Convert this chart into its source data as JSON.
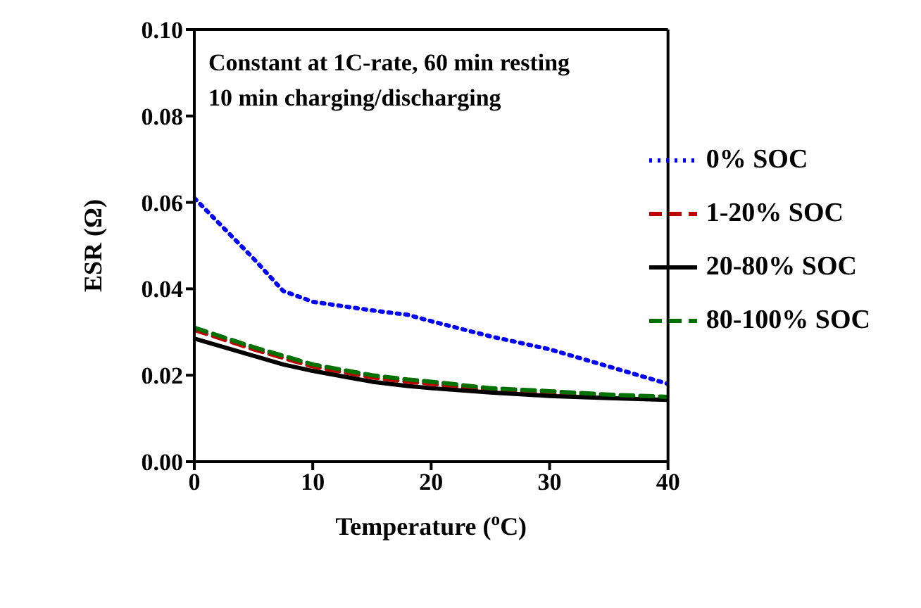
{
  "chart_data": {
    "type": "line",
    "xlabel": "Temperature ($^{o}$C)",
    "ylabel": "ESR (Ω)",
    "annotations": [
      "Constant at 1C-rate, 60 min resting",
      "10 min charging/discharging"
    ],
    "x": [
      0,
      5,
      7.5,
      10,
      15,
      18,
      20,
      25,
      30,
      35,
      40
    ],
    "series": [
      {
        "name": "0% SOC",
        "color": "#0000ff",
        "line_style": "dotted",
        "values": [
          0.061,
          0.047,
          0.0395,
          0.037,
          0.035,
          0.034,
          0.0325,
          0.029,
          0.026,
          0.022,
          0.018
        ]
      },
      {
        "name": "1-20% SOC",
        "color": "#c00000",
        "line_style": "dashed",
        "values": [
          0.0305,
          0.026,
          0.024,
          0.022,
          0.0195,
          0.0185,
          0.018,
          0.0165,
          0.0157,
          0.015,
          0.0145
        ]
      },
      {
        "name": "20-80% SOC",
        "color": "#000000",
        "line_style": "solid",
        "values": [
          0.0285,
          0.0245,
          0.0225,
          0.021,
          0.0185,
          0.0175,
          0.017,
          0.016,
          0.0152,
          0.0147,
          0.0143
        ]
      },
      {
        "name": "80-100% SOC",
        "color": "#007000",
        "line_style": "dashed",
        "values": [
          0.031,
          0.0265,
          0.0245,
          0.0225,
          0.02,
          0.019,
          0.0185,
          0.017,
          0.0163,
          0.0155,
          0.015
        ]
      }
    ],
    "xlim": [
      0,
      40
    ],
    "xticks": [
      0,
      10,
      20,
      30,
      40
    ],
    "ylim": [
      0,
      0.1
    ],
    "yticks": [
      {
        "value": 0,
        "label": "0.00"
      },
      {
        "value": 0.02,
        "label": "0.02"
      },
      {
        "value": 0.04,
        "label": "0.04"
      },
      {
        "value": 0.06,
        "label": "0.06"
      },
      {
        "value": 0.08,
        "label": "0.08"
      },
      {
        "value": 0.1,
        "label": "0.10"
      }
    ],
    "grid": false,
    "legend": "right",
    "marker": "none"
  }
}
